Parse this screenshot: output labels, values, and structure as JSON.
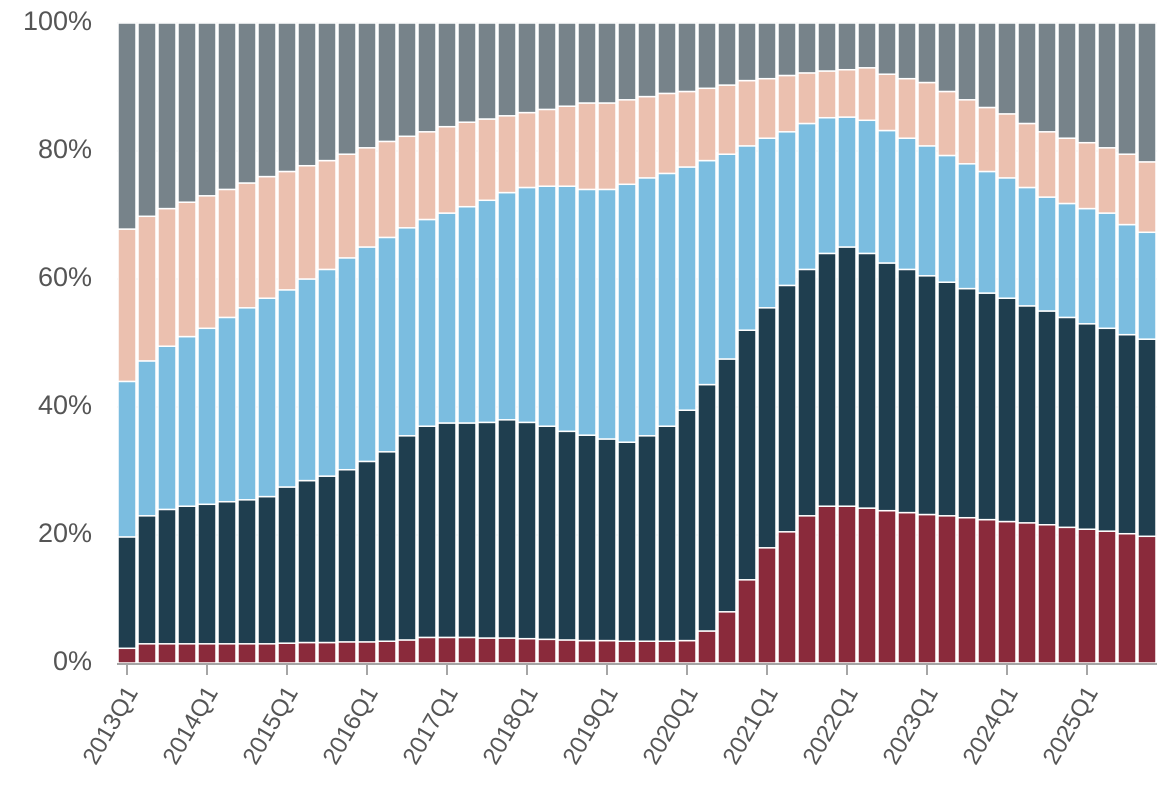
{
  "chart_data": {
    "type": "stacked_bar_100",
    "categories": [
      "2013Q1",
      null,
      null,
      null,
      "2014Q1",
      null,
      null,
      null,
      "2015Q1",
      null,
      null,
      null,
      "2016Q1",
      null,
      null,
      null,
      "2017Q1",
      null,
      null,
      null,
      "2018Q1",
      null,
      null,
      null,
      "2019Q1",
      null,
      null,
      null,
      "2020Q1",
      null,
      null,
      null,
      "2021Q1",
      null,
      null,
      null,
      "2022Q1",
      null,
      null,
      null,
      "2023Q1",
      null,
      null,
      null,
      "2024Q1",
      null,
      null,
      null,
      "2025Q1",
      null,
      null,
      null
    ],
    "series": [
      {
        "color": "#8a2a3b",
        "values": [
          2.3,
          3,
          3,
          3,
          3,
          3,
          3,
          3,
          3.1,
          3.2,
          3.2,
          3.3,
          3.3,
          3.4,
          3.6,
          4,
          4,
          4,
          3.9,
          3.9,
          3.8,
          3.7,
          3.6,
          3.5,
          3.5,
          3.4,
          3.4,
          3.4,
          3.5,
          5,
          8,
          13,
          18,
          20.5,
          23,
          24.5,
          24.5,
          24.2,
          23.8,
          23.5,
          23.2,
          23,
          22.7,
          22.4,
          22.1,
          21.9,
          21.6,
          21.2,
          20.9,
          20.6,
          20.2,
          19.8
        ]
      },
      {
        "color": "#1f3e4f",
        "values": [
          17.4,
          20,
          21,
          21.5,
          21.8,
          22.2,
          22.5,
          23,
          24.4,
          25.3,
          26,
          26.9,
          28.2,
          29.6,
          31.9,
          33,
          33.5,
          33.5,
          33.7,
          34.1,
          33.8,
          33.3,
          32.6,
          32.1,
          31.5,
          31.1,
          32.1,
          33.6,
          36,
          38.5,
          39.5,
          39,
          37.5,
          38.5,
          38.5,
          39.5,
          40.5,
          39.8,
          38.7,
          38,
          37.3,
          36.5,
          35.8,
          35.4,
          34.9,
          33.9,
          33.4,
          32.8,
          32.1,
          31.7,
          31.1,
          30.8
        ]
      },
      {
        "color": "#7bbde0",
        "values": [
          24.3,
          24.2,
          25.5,
          26.5,
          27.5,
          28.8,
          30,
          31,
          30.8,
          31.5,
          32.3,
          33.1,
          33.5,
          33.5,
          32.5,
          32.3,
          32.8,
          33.8,
          34.7,
          35.5,
          36.7,
          37.5,
          38.3,
          38.4,
          39,
          40.3,
          40.3,
          39.5,
          38,
          35,
          32,
          28.8,
          26.5,
          24,
          22.8,
          21.2,
          20.3,
          20.8,
          20.7,
          20.5,
          20.3,
          19.8,
          19.5,
          19,
          18.8,
          18.5,
          17.8,
          17.8,
          18,
          18,
          17.2,
          16.7
        ]
      },
      {
        "color": "#ebc0af",
        "values": [
          23.8,
          22.6,
          21.5,
          21,
          20.7,
          20,
          19.5,
          19,
          18.5,
          17.7,
          17,
          16.2,
          15.5,
          15,
          14.3,
          13.7,
          13.5,
          13.2,
          12.7,
          12,
          11.7,
          12,
          12.5,
          13.5,
          13.5,
          13.2,
          12.7,
          12.5,
          11.8,
          11.3,
          10.8,
          10.2,
          9.3,
          8.8,
          7.9,
          7.3,
          7.4,
          8.2,
          8.8,
          9.3,
          9.9,
          10,
          10,
          10,
          10,
          10,
          10.2,
          10.2,
          10.3,
          10.2,
          11,
          11
        ]
      },
      {
        "color": "#77838a",
        "values": [
          32.2,
          30.2,
          29,
          28,
          27,
          26,
          25,
          24,
          23.2,
          22.3,
          21.5,
          20.5,
          19.5,
          18.5,
          17.7,
          17,
          16.2,
          15.5,
          15,
          14.5,
          14,
          13.5,
          13,
          12.5,
          12.5,
          12,
          11.5,
          11,
          10.7,
          10.2,
          9.7,
          9,
          8.7,
          8.2,
          7.8,
          7.5,
          7.3,
          7,
          8,
          8.7,
          9.3,
          10.7,
          12,
          13.2,
          14.2,
          15.7,
          17,
          18,
          18.7,
          19.5,
          20.5,
          21.7
        ]
      }
    ],
    "ylim": [
      0,
      100
    ],
    "yticks": [
      {
        "value": 0,
        "label": "0%"
      },
      {
        "value": 20,
        "label": "20%"
      },
      {
        "value": 40,
        "label": "40%"
      },
      {
        "value": 60,
        "label": "60%"
      },
      {
        "value": 80,
        "label": "80%"
      },
      {
        "value": 100,
        "label": "100%"
      }
    ],
    "grid": true
  }
}
